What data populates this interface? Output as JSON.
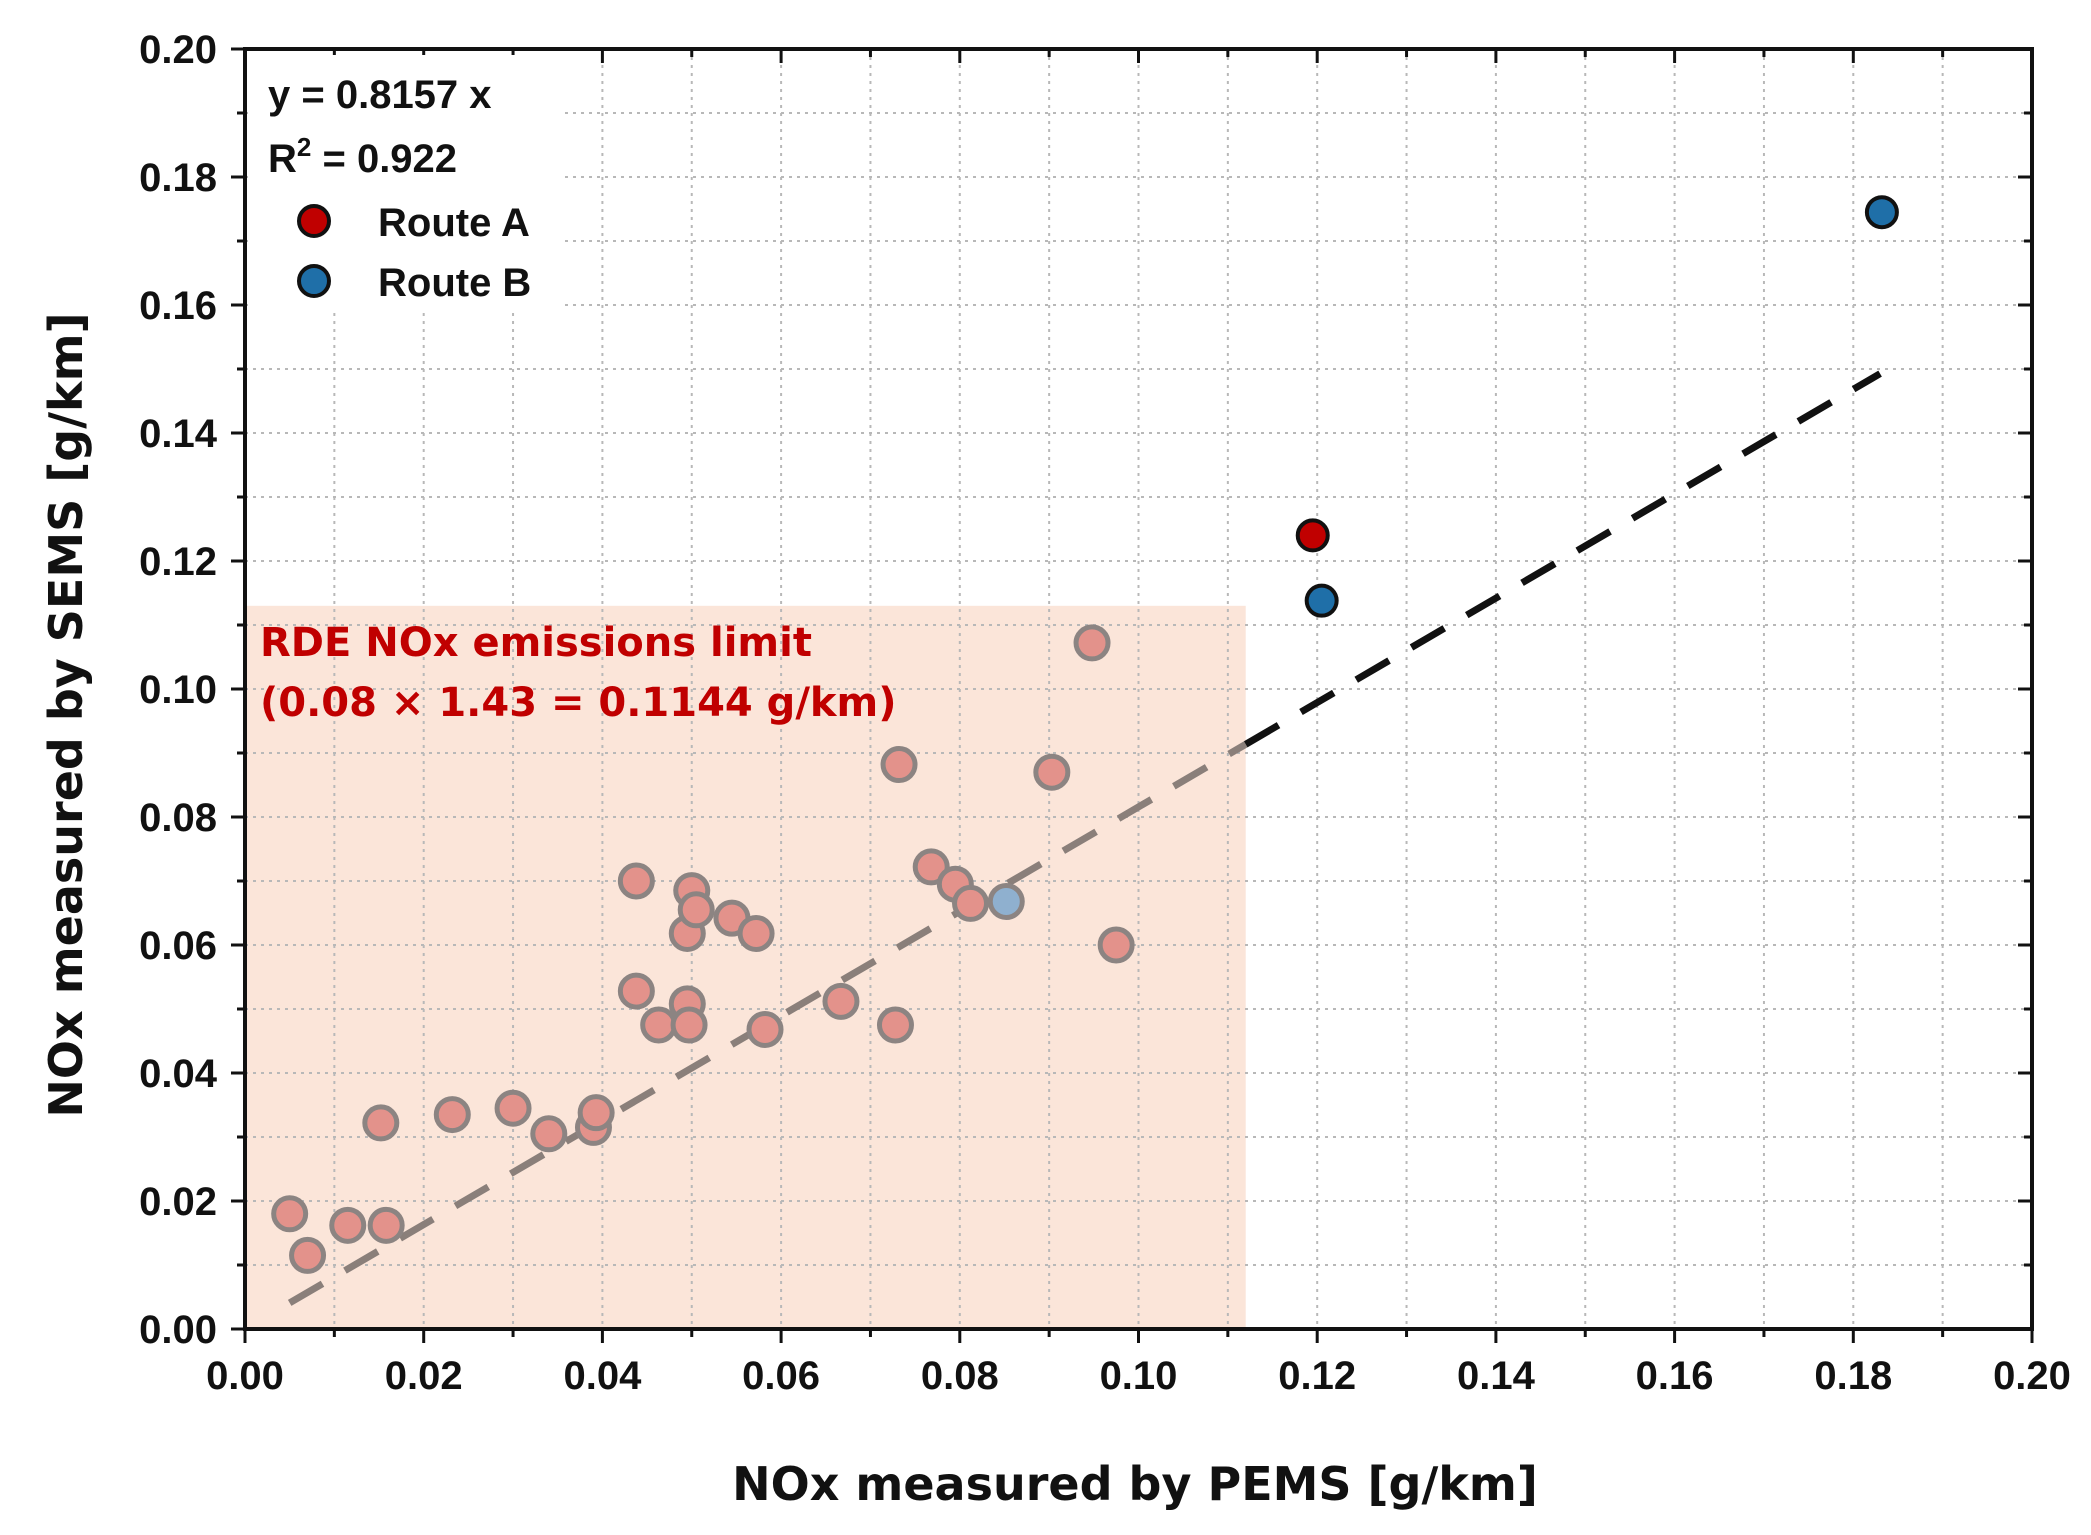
{
  "chart_data": {
    "type": "scatter",
    "xlabel": "NOx measured by PEMS [g/km]",
    "ylabel": "NOx measured by SEMS [g/km]",
    "xlim": [
      0,
      0.2
    ],
    "ylim": [
      0,
      0.2
    ],
    "x_ticks": [
      "0.00",
      "0.02",
      "0.04",
      "0.06",
      "0.08",
      "0.10",
      "0.12",
      "0.14",
      "0.16",
      "0.18",
      "0.20"
    ],
    "y_ticks": [
      "0.00",
      "0.02",
      "0.04",
      "0.06",
      "0.08",
      "0.10",
      "0.12",
      "0.14",
      "0.16",
      "0.18",
      "0.20"
    ],
    "grid": true,
    "fit": {
      "equation": "y = 0.8157 x",
      "r2_label": "R",
      "r2_sup": "2",
      "r2_value": " =  0.922",
      "slope": 0.8157,
      "x_range": [
        0.005,
        0.183
      ],
      "color": "#111111"
    },
    "shaded_region": {
      "x_range": [
        0,
        0.112
      ],
      "y_range": [
        0,
        0.113
      ],
      "color": "#fbe5d9",
      "label_line1": "RDE NOx emissions limit",
      "label_line2": "(0.08 × 1.43 = 0.1144 g/km)"
    },
    "legend": {
      "placement": "top-left",
      "entries": [
        {
          "label": "Route A",
          "color": "#c00000"
        },
        {
          "label": "Route B",
          "color": "#1f6fa8"
        }
      ]
    },
    "series": [
      {
        "name": "Route A",
        "color": "#c00000",
        "points": [
          {
            "x": 0.1195,
            "y": 0.124,
            "faded": false
          },
          {
            "x": 0.005,
            "y": 0.018,
            "faded": true
          },
          {
            "x": 0.007,
            "y": 0.0115,
            "faded": true
          },
          {
            "x": 0.0115,
            "y": 0.0162,
            "faded": true
          },
          {
            "x": 0.0158,
            "y": 0.0162,
            "faded": true
          },
          {
            "x": 0.0152,
            "y": 0.0322,
            "faded": true
          },
          {
            "x": 0.0232,
            "y": 0.0335,
            "faded": true
          },
          {
            "x": 0.03,
            "y": 0.0345,
            "faded": true
          },
          {
            "x": 0.034,
            "y": 0.0305,
            "faded": true
          },
          {
            "x": 0.039,
            "y": 0.0315,
            "faded": true
          },
          {
            "x": 0.0393,
            "y": 0.0338,
            "faded": true
          },
          {
            "x": 0.0438,
            "y": 0.07,
            "faded": true
          },
          {
            "x": 0.0438,
            "y": 0.0528,
            "faded": true
          },
          {
            "x": 0.0463,
            "y": 0.0475,
            "faded": true
          },
          {
            "x": 0.0495,
            "y": 0.0508,
            "faded": true
          },
          {
            "x": 0.0497,
            "y": 0.0475,
            "faded": true
          },
          {
            "x": 0.0495,
            "y": 0.0618,
            "faded": true
          },
          {
            "x": 0.05,
            "y": 0.0685,
            "faded": true
          },
          {
            "x": 0.0505,
            "y": 0.0655,
            "faded": true
          },
          {
            "x": 0.0545,
            "y": 0.0642,
            "faded": true
          },
          {
            "x": 0.0572,
            "y": 0.0618,
            "faded": true
          },
          {
            "x": 0.0582,
            "y": 0.0468,
            "faded": true
          },
          {
            "x": 0.0667,
            "y": 0.0512,
            "faded": true
          },
          {
            "x": 0.0728,
            "y": 0.0475,
            "faded": true
          },
          {
            "x": 0.0732,
            "y": 0.0882,
            "faded": true
          },
          {
            "x": 0.0768,
            "y": 0.0722,
            "faded": true
          },
          {
            "x": 0.0795,
            "y": 0.0695,
            "faded": true
          },
          {
            "x": 0.0812,
            "y": 0.0665,
            "faded": true
          },
          {
            "x": 0.0903,
            "y": 0.087,
            "faded": true
          },
          {
            "x": 0.0948,
            "y": 0.1072,
            "faded": true
          },
          {
            "x": 0.0975,
            "y": 0.06,
            "faded": true
          }
        ]
      },
      {
        "name": "Route B",
        "color": "#1f6fa8",
        "points": [
          {
            "x": 0.1205,
            "y": 0.1138,
            "faded": false
          },
          {
            "x": 0.1832,
            "y": 0.1745,
            "faded": false
          },
          {
            "x": 0.0852,
            "y": 0.0668,
            "faded": true
          }
        ]
      }
    ]
  }
}
